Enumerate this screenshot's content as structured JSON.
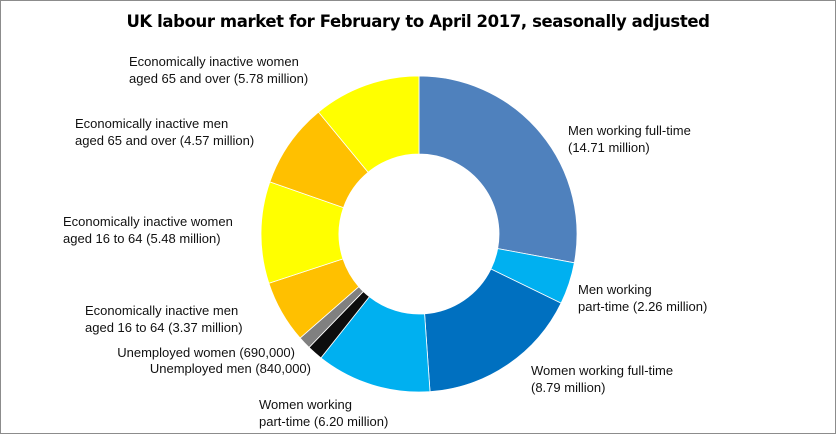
{
  "chart_data": {
    "type": "pie",
    "subtype": "donut",
    "title": "UK labour market for February to April 2017, seasonally adjusted",
    "units": "million",
    "legend": "none (data labels outside slices)",
    "center": [
      418,
      233
    ],
    "outer_radius": 158,
    "inner_radius": 80,
    "slices": [
      {
        "name": "Men working full-time",
        "value": 14.71,
        "color": "#4f81bd",
        "label1": "Men working full-time",
        "label2": "(14.71 million)"
      },
      {
        "name": "Men working part-time",
        "value": 2.26,
        "color": "#00b0f0",
        "label1": "Men working",
        "label2": "part-time (2.26 million)"
      },
      {
        "name": "Women working full-time",
        "value": 8.79,
        "color": "#0070c0",
        "label1": "Women working full-time",
        "label2": "(8.79 million)"
      },
      {
        "name": "Women working part-time",
        "value": 6.2,
        "color": "#00b0f0",
        "label1": "Women working",
        "label2": "part-time (6.20 million)"
      },
      {
        "name": "Unemployed men",
        "value": 0.84,
        "color": "#0d0d0d",
        "label1": "Unemployed men (840,000)"
      },
      {
        "name": "Unemployed women",
        "value": 0.69,
        "color": "#808080",
        "label1": "Unemployed women (690,000)"
      },
      {
        "name": "Economically inactive men aged 16 to 64",
        "value": 3.37,
        "color": "#ffc000",
        "label1": "Economically inactive men",
        "label2": "aged 16 to 64 (3.37 million)"
      },
      {
        "name": "Economically inactive women aged 16 to 64",
        "value": 5.48,
        "color": "#ffff00",
        "label1": "Economically inactive women",
        "label2": "aged 16 to 64 (5.48 million)"
      },
      {
        "name": "Economically inactive men aged 65 and over",
        "value": 4.57,
        "color": "#ffc000",
        "label1": "Economically inactive men",
        "label2": "aged 65 and over (4.57 million)"
      },
      {
        "name": "Economically inactive women aged 65 and over",
        "value": 5.78,
        "color": "#ffff00",
        "label1": "Economically inactive women",
        "label2": "aged 65 and over (5.78 million)"
      }
    ]
  }
}
